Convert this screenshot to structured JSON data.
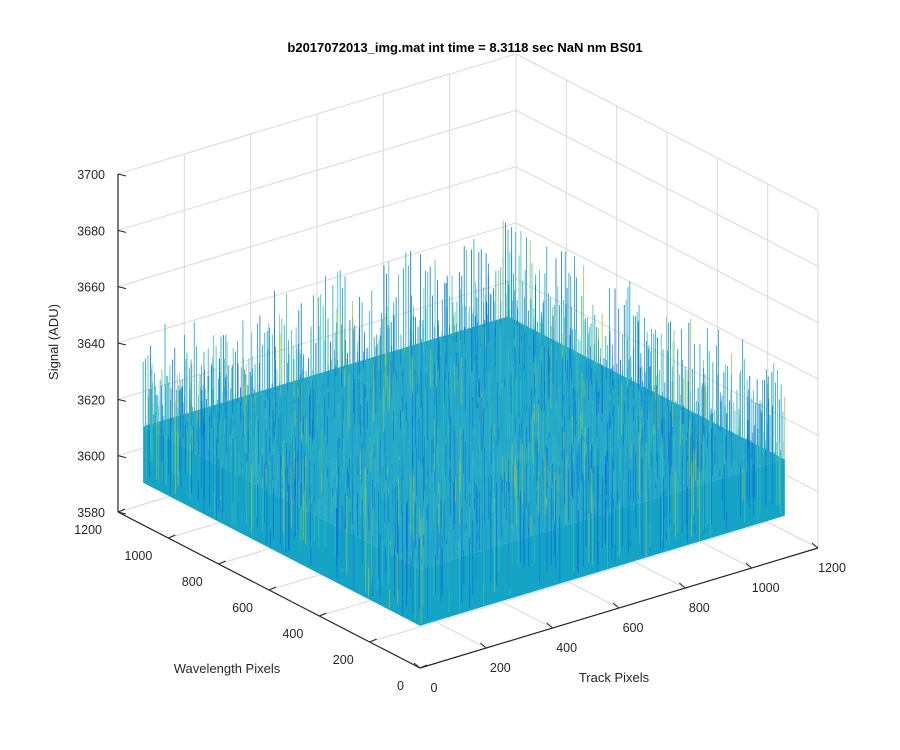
{
  "chart_data": {
    "type": "surface",
    "title": "b2017072013_img.mat int time = 8.3118 sec  NaN nm BS01",
    "xlabel": "Track Pixels",
    "ylabel": "Wavelength Pixels",
    "zlabel": "Signal (ADU)",
    "xlim": [
      0,
      1200
    ],
    "ylim": [
      0,
      1200
    ],
    "zlim": [
      3580,
      3700
    ],
    "xticks": [
      "0",
      "200",
      "400",
      "600",
      "800",
      "1000",
      "1200"
    ],
    "yticks": [
      "0",
      "200",
      "400",
      "600",
      "800",
      "1000",
      "1200"
    ],
    "zticks": [
      "3580",
      "3600",
      "3620",
      "3640",
      "3660",
      "3680",
      "3700"
    ],
    "grid": true,
    "surface": {
      "x_extent": [
        0,
        1100
      ],
      "y_extent": [
        0,
        1100
      ],
      "mean_signal": 3615,
      "noise_range": [
        3595,
        3650
      ],
      "colormap": "parula"
    }
  },
  "colors": {
    "surface_dark": "#0a72d8",
    "surface_mid": "#15a3c6",
    "surface_light": "#3cc0b0",
    "surface_yellow": "#9bc64a",
    "axis": "#262626",
    "grid": "#d9d9d9"
  }
}
